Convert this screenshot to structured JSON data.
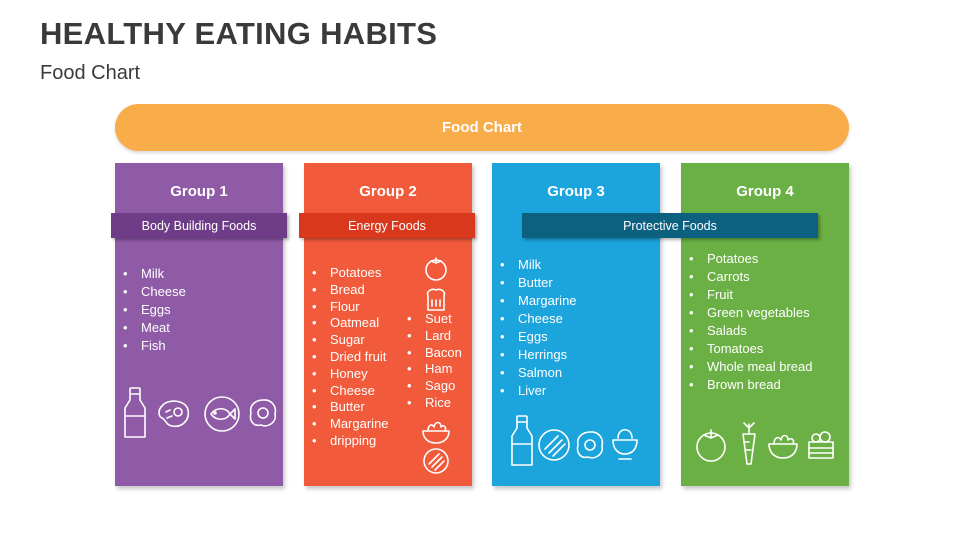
{
  "header": {
    "title": "HEALTHY EATING HABITS",
    "subtitle": "Food Chart"
  },
  "banner": {
    "label": "Food Chart",
    "color": "#f9ad4a"
  },
  "groups": [
    {
      "title": "Group 1",
      "color": "#8f5aa6",
      "items": [
        "Milk",
        "Cheese",
        "Eggs",
        "Meat",
        "Fish"
      ],
      "icons": [
        "milk-bottle-icon",
        "steak-icon",
        "fish-plate-icon",
        "fried-egg-icon"
      ]
    },
    {
      "title": "Group 2",
      "color": "#f15a3b",
      "items": [
        "Potatoes",
        "Bread",
        "Flour",
        "Oatmeal",
        "Sugar",
        "Dried fruit",
        "Honey",
        "Cheese",
        "Butter",
        "Margarine",
        "dripping"
      ],
      "items_col2": [
        "Suet",
        "Lard",
        "Bacon",
        "Ham",
        "Sago",
        "Rice"
      ],
      "icons": [
        "tomato-icon",
        "bread-icon",
        "salad-bowl-icon",
        "bacon-plate-icon"
      ]
    },
    {
      "title": "Group 3",
      "color": "#1ca4dc",
      "items": [
        "Milk",
        "Butter",
        "Margarine",
        "Cheese",
        "Eggs",
        "Herrings",
        "Salmon",
        "Liver"
      ],
      "icons": [
        "milk-bottle-icon",
        "bacon-plate-icon",
        "fried-egg-icon",
        "egg-cup-icon"
      ]
    },
    {
      "title": "Group 4",
      "color": "#6bb044",
      "items": [
        "Potatoes",
        "Carrots",
        "Fruit",
        "Green vegetables",
        "Salads",
        "Tomatoes",
        "Whole meal bread",
        "Brown bread"
      ],
      "icons": [
        "tomato-icon",
        "carrot-icon",
        "salad-bowl-icon",
        "vegetable-crate-icon"
      ]
    }
  ],
  "categories": [
    {
      "label": "Body Building Foods",
      "color": "#6f3d88"
    },
    {
      "label": "Energy Foods",
      "color": "#d9381c"
    },
    {
      "label": "Protective Foods",
      "color": "#0c6080"
    }
  ]
}
